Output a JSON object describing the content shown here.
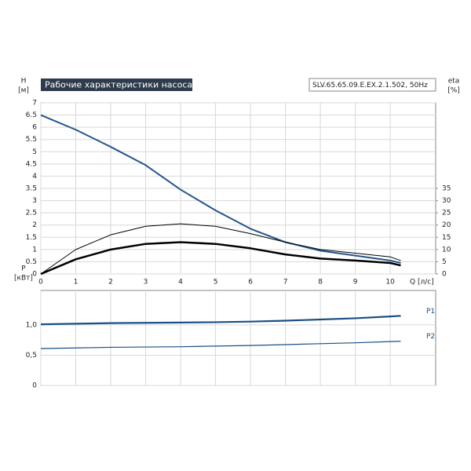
{
  "chart_data": [
    {
      "type": "line",
      "title": "Рабочие характеристики насоса",
      "subtitle": "SLV.65.65.09.E.EX.2.1.502, 50Hz",
      "y_label": "H",
      "y_unit": "[м]",
      "y2_label": "eta",
      "y2_unit": "[%]",
      "x_label": "Q [л/с]",
      "x": [
        0,
        1,
        2,
        3,
        4,
        5,
        6,
        7,
        8,
        9,
        10,
        10.3
      ],
      "xlim": [
        0,
        11.3
      ],
      "xticks": [
        0,
        1,
        2,
        3,
        4,
        5,
        6,
        7,
        8,
        9,
        10
      ],
      "ylim": [
        0,
        7
      ],
      "yticks": [
        0,
        0.5,
        1,
        1.5,
        2,
        2.5,
        3,
        3.5,
        4,
        4.5,
        5,
        5.5,
        6,
        6.5,
        7
      ],
      "y2lim": [
        0,
        70
      ],
      "y2ticks": [
        0,
        5,
        10,
        15,
        20,
        25,
        30,
        35
      ],
      "grid": true,
      "series": [
        {
          "color": "#24558c",
          "width": 2,
          "values": [
            6.5,
            5.9,
            5.2,
            4.45,
            3.45,
            2.6,
            1.85,
            1.3,
            0.95,
            0.75,
            0.55,
            0.45
          ]
        },
        {
          "color": "#000000",
          "width": 1,
          "axis": "y2",
          "values": [
            0,
            10,
            16,
            19.5,
            20.5,
            19.5,
            16.5,
            13,
            10,
            8.5,
            7,
            5.5
          ]
        },
        {
          "color": "#000000",
          "width": 2.5,
          "axis": "y2",
          "values": [
            0,
            6,
            10,
            12.3,
            13,
            12.3,
            10.5,
            8,
            6.3,
            5.5,
            4.5,
            3.5
          ]
        }
      ]
    },
    {
      "type": "line",
      "y_label": "P",
      "y_unit": "[кВт]",
      "x": [
        0,
        1,
        2,
        3,
        4,
        5,
        6,
        7,
        8,
        9,
        10,
        10.3
      ],
      "xlim": [
        0,
        11.3
      ],
      "xticks": [
        0,
        1,
        2,
        3,
        4,
        5,
        6,
        7,
        8,
        9,
        10
      ],
      "ylim": [
        0,
        1.57
      ],
      "yticks": [
        0,
        {
          "value": 0.5,
          "label": "0,5"
        },
        {
          "value": 1,
          "label": "1,0"
        }
      ],
      "grid": true,
      "series": [
        {
          "name": "P1",
          "color": "#1a4f85",
          "width": 2.2,
          "values": [
            1.01,
            1.02,
            1.03,
            1.035,
            1.04,
            1.045,
            1.055,
            1.07,
            1.09,
            1.11,
            1.14,
            1.15
          ]
        },
        {
          "name": "P2",
          "color": "#1a4f85",
          "width": 1.2,
          "values": [
            0.61,
            0.62,
            0.63,
            0.635,
            0.64,
            0.65,
            0.66,
            0.675,
            0.69,
            0.705,
            0.725,
            0.73
          ]
        }
      ]
    }
  ]
}
